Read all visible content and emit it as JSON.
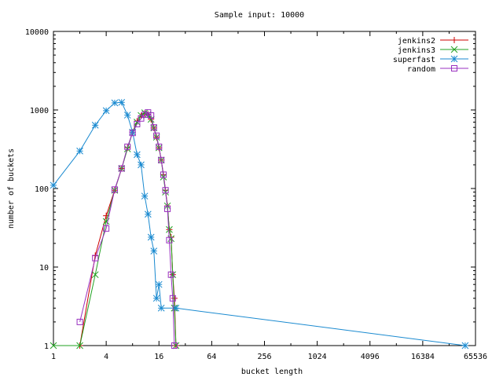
{
  "chart_data": {
    "type": "line",
    "title": "Sample input: 10000",
    "xlabel": "bucket length",
    "ylabel": "number of buckets",
    "x_scale": "log2",
    "y_scale": "log10",
    "xlim": [
      1,
      65536
    ],
    "ylim": [
      1,
      10000
    ],
    "x_ticks": [
      "1",
      "4",
      "16",
      "64",
      "256",
      "1024",
      "4096",
      "16384",
      "65536"
    ],
    "x_tick_values": [
      1,
      4,
      16,
      64,
      256,
      1024,
      4096,
      16384,
      65536
    ],
    "y_ticks": [
      "1",
      "10",
      "100",
      "1000",
      "10000"
    ],
    "y_tick_values": [
      1,
      10,
      100,
      1000,
      10000
    ],
    "grid": false,
    "legend_position": "top-right",
    "series": [
      {
        "name": "jenkins2",
        "color": "#cc0000",
        "marker": "plus",
        "points": [
          [
            2,
            1
          ],
          [
            3,
            14
          ],
          [
            4,
            45
          ],
          [
            5,
            95
          ],
          [
            6,
            180
          ],
          [
            7,
            330
          ],
          [
            8,
            520
          ],
          [
            9,
            720
          ],
          [
            10,
            840
          ],
          [
            11,
            900
          ],
          [
            12,
            880
          ],
          [
            13,
            760
          ],
          [
            14,
            590
          ],
          [
            15,
            450
          ],
          [
            16,
            330
          ],
          [
            17,
            230
          ],
          [
            18,
            150
          ],
          [
            19,
            95
          ],
          [
            20,
            60
          ],
          [
            21,
            30
          ],
          [
            22,
            24
          ],
          [
            23,
            8
          ],
          [
            24,
            4
          ],
          [
            25,
            1
          ]
        ]
      },
      {
        "name": "jenkins3",
        "color": "#20a020",
        "marker": "cross",
        "points": [
          [
            1,
            1
          ],
          [
            2,
            1
          ],
          [
            3,
            8
          ],
          [
            4,
            38
          ],
          [
            5,
            95
          ],
          [
            6,
            180
          ],
          [
            7,
            320
          ],
          [
            8,
            520
          ],
          [
            9,
            700
          ],
          [
            10,
            850
          ],
          [
            11,
            920
          ],
          [
            12,
            880
          ],
          [
            13,
            760
          ],
          [
            14,
            590
          ],
          [
            15,
            450
          ],
          [
            16,
            330
          ],
          [
            17,
            230
          ],
          [
            18,
            140
          ],
          [
            19,
            90
          ],
          [
            20,
            60
          ],
          [
            21,
            30
          ],
          [
            22,
            23
          ],
          [
            23,
            8
          ],
          [
            24,
            3
          ],
          [
            25,
            1
          ]
        ]
      },
      {
        "name": "superfast",
        "color": "#1a8ad0",
        "marker": "star",
        "points": [
          [
            1,
            110
          ],
          [
            2,
            300
          ],
          [
            3,
            640
          ],
          [
            4,
            980
          ],
          [
            5,
            1230
          ],
          [
            6,
            1250
          ],
          [
            7,
            860
          ],
          [
            8,
            520
          ],
          [
            9,
            270
          ],
          [
            10,
            200
          ],
          [
            11,
            80
          ],
          [
            12,
            47
          ],
          [
            13,
            24
          ],
          [
            14,
            16
          ],
          [
            15,
            4
          ],
          [
            16,
            6
          ],
          [
            17,
            3
          ],
          [
            25,
            3
          ],
          [
            50000,
            1
          ]
        ]
      },
      {
        "name": "random",
        "color": "#9a30c0",
        "marker": "box",
        "points": [
          [
            2,
            2
          ],
          [
            3,
            13
          ],
          [
            4,
            31
          ],
          [
            5,
            97
          ],
          [
            6,
            180
          ],
          [
            7,
            340
          ],
          [
            8,
            510
          ],
          [
            9,
            660
          ],
          [
            10,
            780
          ],
          [
            11,
            870
          ],
          [
            12,
            930
          ],
          [
            13,
            850
          ],
          [
            14,
            600
          ],
          [
            15,
            470
          ],
          [
            16,
            340
          ],
          [
            17,
            230
          ],
          [
            18,
            150
          ],
          [
            19,
            95
          ],
          [
            20,
            55
          ],
          [
            21,
            22
          ],
          [
            22,
            8
          ],
          [
            23,
            4
          ],
          [
            24,
            1
          ]
        ]
      }
    ]
  }
}
